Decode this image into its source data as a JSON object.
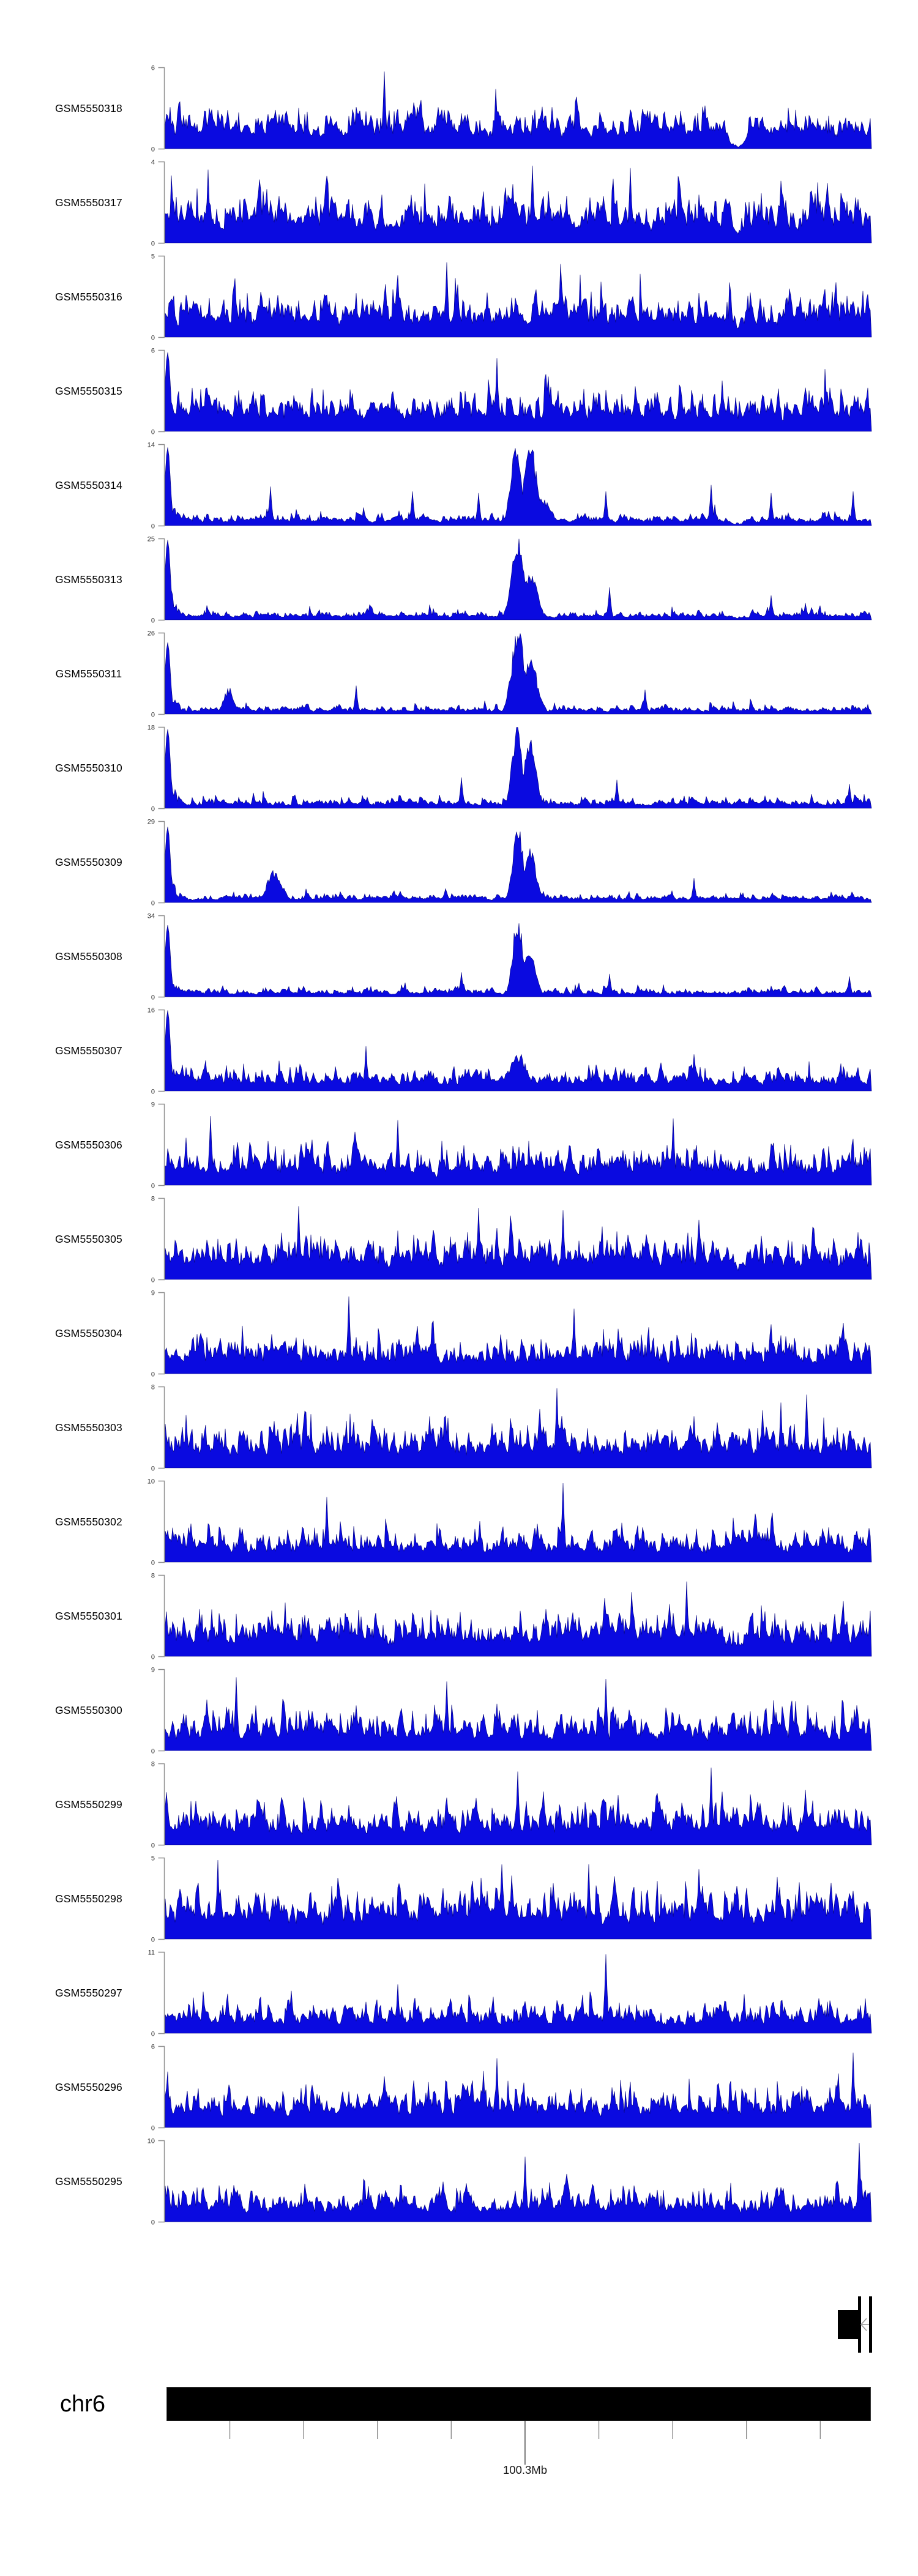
{
  "figure": {
    "background": "#ffffff",
    "kind": "genome-browser-coverage-plot"
  },
  "colors": {
    "signal_fill": "#0a0ae0",
    "signal_edge": "#000078",
    "axis_gray": "#8c8c8c",
    "major_tick": "#404040",
    "ink": "#000000"
  },
  "ideogram": {
    "chromosome": "chr6",
    "position_label": "100.3Mb"
  },
  "annotation_track": {
    "glyph": "gene-model",
    "strand_arrow": "left",
    "elements": [
      "thick-exon-box",
      "thin-exon-bar",
      "thin-exon-bar",
      "intron-line-with-left-arrow"
    ]
  },
  "chart_data": {
    "type": "area",
    "title": "",
    "description": "Stacked coverage/signal tracks (Gviz-style) for 23 GEO samples across a chr6 window centered near 100.3Mb; each track is a dense blue filled histogram with its own y-axis from 0 to ymax. Per-bin values are visual estimates encoded as generative shape parameters (fractions of ymax).",
    "x_axis": {
      "chromosome": "chr6",
      "labeled_position": "100.3Mb",
      "tick_count": 9,
      "major_tick_index": 4
    },
    "note": "base/spike/left/peaks/tall/dips are fractions of each track ymax; peaks=[pos,height,width_bins]; tall=[pos,height]; dips=[pos,halfwidth,floor_factor]",
    "tracks": [
      {
        "label": "GSM5550318",
        "ymax": 6,
        "seed": 318,
        "base": 0.4,
        "spike_p": 0.1,
        "spike_h": 0.42,
        "tall": [
          [
            0.31,
            0.95
          ]
        ],
        "dips": [
          [
            0.812,
            0.02,
            0.06
          ]
        ]
      },
      {
        "label": "GSM5550317",
        "ymax": 4,
        "seed": 317,
        "base": 0.46,
        "spike_p": 0.13,
        "spike_h": 0.48,
        "tall": [
          [
            0.06,
            0.9
          ],
          [
            0.52,
            0.95
          ],
          [
            0.66,
            0.92
          ]
        ],
        "dips": [
          [
            0.812,
            0.012,
            0.5
          ]
        ]
      },
      {
        "label": "GSM5550316",
        "ymax": 5,
        "seed": 316,
        "base": 0.42,
        "spike_p": 0.12,
        "spike_h": 0.46,
        "tall": [
          [
            0.4,
            0.92
          ],
          [
            0.56,
            0.9
          ]
        ],
        "dips": [
          [
            0.812,
            0.012,
            0.55
          ]
        ]
      },
      {
        "label": "GSM5550315",
        "ymax": 6,
        "seed": 315,
        "base": 0.4,
        "spike_p": 0.11,
        "spike_h": 0.44,
        "left": 0.97,
        "tall": [
          [
            0.47,
            0.9
          ]
        ],
        "dips": [
          [
            0.812,
            0.012,
            0.6
          ]
        ]
      },
      {
        "label": "GSM5550314",
        "ymax": 14,
        "seed": 314,
        "base": 0.11,
        "spike_p": 0.08,
        "spike_h": 0.24,
        "left": 0.96,
        "peaks": [
          [
            0.497,
            0.99,
            4
          ],
          [
            0.518,
            0.95,
            5
          ],
          [
            0.535,
            0.3,
            7
          ]
        ],
        "tall": [
          [
            0.15,
            0.48
          ],
          [
            0.35,
            0.42
          ],
          [
            0.445,
            0.4
          ],
          [
            0.625,
            0.42
          ],
          [
            0.775,
            0.5
          ],
          [
            0.86,
            0.4
          ],
          [
            0.975,
            0.42
          ]
        ],
        "dips": [
          [
            0.815,
            0.015,
            0.15
          ]
        ]
      },
      {
        "label": "GSM5550313",
        "ymax": 25,
        "seed": 313,
        "base": 0.085,
        "spike_p": 0.06,
        "spike_h": 0.18,
        "left": 0.98,
        "peaks": [
          [
            0.5,
            0.93,
            5
          ],
          [
            0.517,
            0.55,
            6
          ]
        ],
        "tall": [
          [
            0.63,
            0.4
          ],
          [
            0.86,
            0.3
          ]
        ],
        "dips": [
          [
            0.815,
            0.015,
            0.3
          ]
        ]
      },
      {
        "label": "GSM5550311",
        "ymax": 26,
        "seed": 311,
        "base": 0.085,
        "spike_p": 0.06,
        "spike_h": 0.18,
        "left": 0.88,
        "peaks": [
          [
            0.5,
            0.99,
            5
          ],
          [
            0.518,
            0.62,
            6
          ],
          [
            0.09,
            0.3,
            4
          ]
        ],
        "tall": [
          [
            0.27,
            0.35
          ],
          [
            0.68,
            0.3
          ]
        ]
      },
      {
        "label": "GSM5550310",
        "ymax": 18,
        "seed": 310,
        "base": 0.1,
        "spike_p": 0.07,
        "spike_h": 0.2,
        "left": 0.97,
        "peaks": [
          [
            0.499,
            0.96,
            4
          ],
          [
            0.517,
            0.78,
            5
          ]
        ],
        "tall": [
          [
            0.42,
            0.38
          ],
          [
            0.64,
            0.35
          ],
          [
            0.97,
            0.3
          ]
        ]
      },
      {
        "label": "GSM5550309",
        "ymax": 29,
        "seed": 309,
        "base": 0.09,
        "spike_p": 0.06,
        "spike_h": 0.18,
        "left": 0.93,
        "peaks": [
          [
            0.5,
            0.98,
            4
          ],
          [
            0.517,
            0.62,
            5
          ],
          [
            0.155,
            0.38,
            6
          ]
        ],
        "tall": [
          [
            0.75,
            0.3
          ]
        ]
      },
      {
        "label": "GSM5550308",
        "ymax": 34,
        "seed": 308,
        "base": 0.085,
        "spike_p": 0.06,
        "spike_h": 0.17,
        "left": 0.88,
        "peaks": [
          [
            0.5,
            0.92,
            4
          ],
          [
            0.516,
            0.55,
            5
          ]
        ],
        "tall": [
          [
            0.42,
            0.3
          ],
          [
            0.63,
            0.28
          ],
          [
            0.97,
            0.25
          ]
        ]
      },
      {
        "label": "GSM5550307",
        "ymax": 16,
        "seed": 307,
        "base": 0.22,
        "spike_p": 0.09,
        "spike_h": 0.26,
        "left": 0.99,
        "peaks": [
          [
            0.5,
            0.45,
            7
          ]
        ],
        "tall": [
          [
            0.285,
            0.55
          ],
          [
            0.75,
            0.45
          ]
        ]
      },
      {
        "label": "GSM5550306",
        "ymax": 9,
        "seed": 306,
        "base": 0.38,
        "spike_p": 0.1,
        "spike_h": 0.42,
        "tall": [
          [
            0.065,
            0.85
          ],
          [
            0.33,
            0.8
          ],
          [
            0.72,
            0.82
          ]
        ]
      },
      {
        "label": "GSM5550305",
        "ymax": 8,
        "seed": 305,
        "base": 0.43,
        "spike_p": 0.12,
        "spike_h": 0.44,
        "tall": [
          [
            0.19,
            0.9
          ],
          [
            0.445,
            0.88
          ],
          [
            0.565,
            0.85
          ]
        ],
        "dips": [
          [
            0.812,
            0.012,
            0.5
          ]
        ]
      },
      {
        "label": "GSM5550304",
        "ymax": 9,
        "seed": 304,
        "base": 0.36,
        "spike_p": 0.1,
        "spike_h": 0.44,
        "tall": [
          [
            0.26,
            0.95
          ],
          [
            0.58,
            0.8
          ]
        ]
      },
      {
        "label": "GSM5550303",
        "ymax": 8,
        "seed": 303,
        "base": 0.43,
        "spike_p": 0.12,
        "spike_h": 0.46,
        "tall": [
          [
            0.555,
            0.98
          ],
          [
            0.91,
            0.9
          ]
        ]
      },
      {
        "label": "GSM5550302",
        "ymax": 10,
        "seed": 302,
        "base": 0.34,
        "spike_p": 0.09,
        "spike_h": 0.44,
        "tall": [
          [
            0.565,
            0.97
          ],
          [
            0.23,
            0.8
          ]
        ]
      },
      {
        "label": "GSM5550301",
        "ymax": 8,
        "seed": 301,
        "base": 0.43,
        "spike_p": 0.12,
        "spike_h": 0.45,
        "tall": [
          [
            0.74,
            0.92
          ]
        ],
        "dips": [
          [
            0.812,
            0.012,
            0.55
          ]
        ]
      },
      {
        "label": "GSM5550300",
        "ymax": 9,
        "seed": 300,
        "base": 0.39,
        "spike_p": 0.1,
        "spike_h": 0.44,
        "tall": [
          [
            0.1,
            0.9
          ],
          [
            0.4,
            0.85
          ],
          [
            0.625,
            0.88
          ]
        ]
      },
      {
        "label": "GSM5550299",
        "ymax": 8,
        "seed": 299,
        "base": 0.41,
        "spike_p": 0.11,
        "spike_h": 0.42,
        "tall": [
          [
            0.5,
            0.9
          ],
          [
            0.775,
            0.95
          ]
        ]
      },
      {
        "label": "GSM5550298",
        "ymax": 5,
        "seed": 298,
        "base": 0.54,
        "spike_p": 0.14,
        "spike_h": 0.4,
        "tall": [
          [
            0.075,
            0.97
          ],
          [
            0.6,
            0.92
          ]
        ]
      },
      {
        "label": "GSM5550297",
        "ymax": 11,
        "seed": 297,
        "base": 0.3,
        "spike_p": 0.08,
        "spike_h": 0.4,
        "tall": [
          [
            0.625,
            0.97
          ],
          [
            0.33,
            0.6
          ]
        ]
      },
      {
        "label": "GSM5550296",
        "ymax": 6,
        "seed": 296,
        "base": 0.41,
        "spike_p": 0.11,
        "spike_h": 0.42,
        "tall": [
          [
            0.975,
            0.92
          ],
          [
            0.47,
            0.85
          ]
        ]
      },
      {
        "label": "GSM5550295",
        "ymax": 10,
        "seed": 295,
        "base": 0.33,
        "spike_p": 0.09,
        "spike_h": 0.42,
        "tall": [
          [
            0.985,
            0.97
          ],
          [
            0.51,
            0.8
          ]
        ]
      }
    ]
  }
}
